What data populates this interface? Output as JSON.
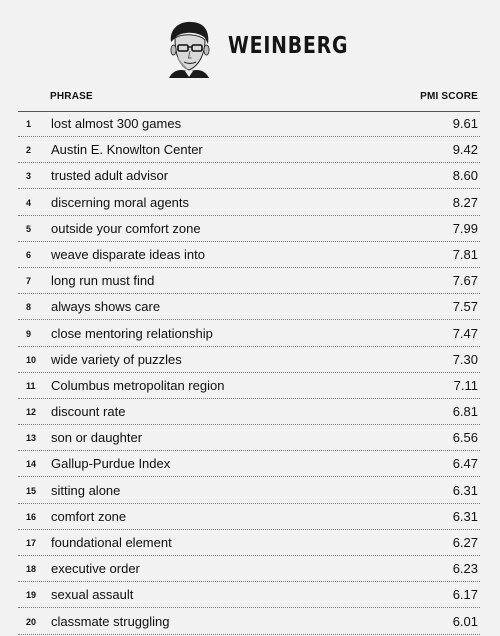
{
  "header": {
    "name": "WEINBERG",
    "portrait_icon": "portrait-icon"
  },
  "table": {
    "columns": {
      "phrase": "PHRASE",
      "score": "PMI SCORE"
    },
    "rows": [
      {
        "rank": "1",
        "phrase": "lost almost 300 games",
        "score": "9.61"
      },
      {
        "rank": "2",
        "phrase": "Austin E. Knowlton Center",
        "score": "9.42"
      },
      {
        "rank": "3",
        "phrase": "trusted adult advisor",
        "score": "8.60"
      },
      {
        "rank": "4",
        "phrase": "discerning moral agents",
        "score": "8.27"
      },
      {
        "rank": "5",
        "phrase": "outside your comfort zone",
        "score": "7.99"
      },
      {
        "rank": "6",
        "phrase": "weave disparate ideas into",
        "score": "7.81"
      },
      {
        "rank": "7",
        "phrase": "long run must find",
        "score": "7.67"
      },
      {
        "rank": "8",
        "phrase": "always shows care",
        "score": "7.57"
      },
      {
        "rank": "9",
        "phrase": "close mentoring relationship",
        "score": "7.47"
      },
      {
        "rank": "10",
        "phrase": "wide variety of puzzles",
        "score": "7.30"
      },
      {
        "rank": "11",
        "phrase": "Columbus metropolitan region",
        "score": "7.11"
      },
      {
        "rank": "12",
        "phrase": "discount rate",
        "score": "6.81"
      },
      {
        "rank": "13",
        "phrase": "son or daughter",
        "score": "6.56"
      },
      {
        "rank": "14",
        "phrase": "Gallup-Purdue Index",
        "score": "6.47"
      },
      {
        "rank": "15",
        "phrase": "sitting alone",
        "score": "6.31"
      },
      {
        "rank": "16",
        "phrase": "comfort zone",
        "score": "6.31"
      },
      {
        "rank": "17",
        "phrase": "foundational element",
        "score": "6.27"
      },
      {
        "rank": "18",
        "phrase": "executive order",
        "score": "6.23"
      },
      {
        "rank": "19",
        "phrase": "sexual assault",
        "score": "6.17"
      },
      {
        "rank": "20",
        "phrase": "classmate struggling",
        "score": "6.01"
      }
    ]
  }
}
